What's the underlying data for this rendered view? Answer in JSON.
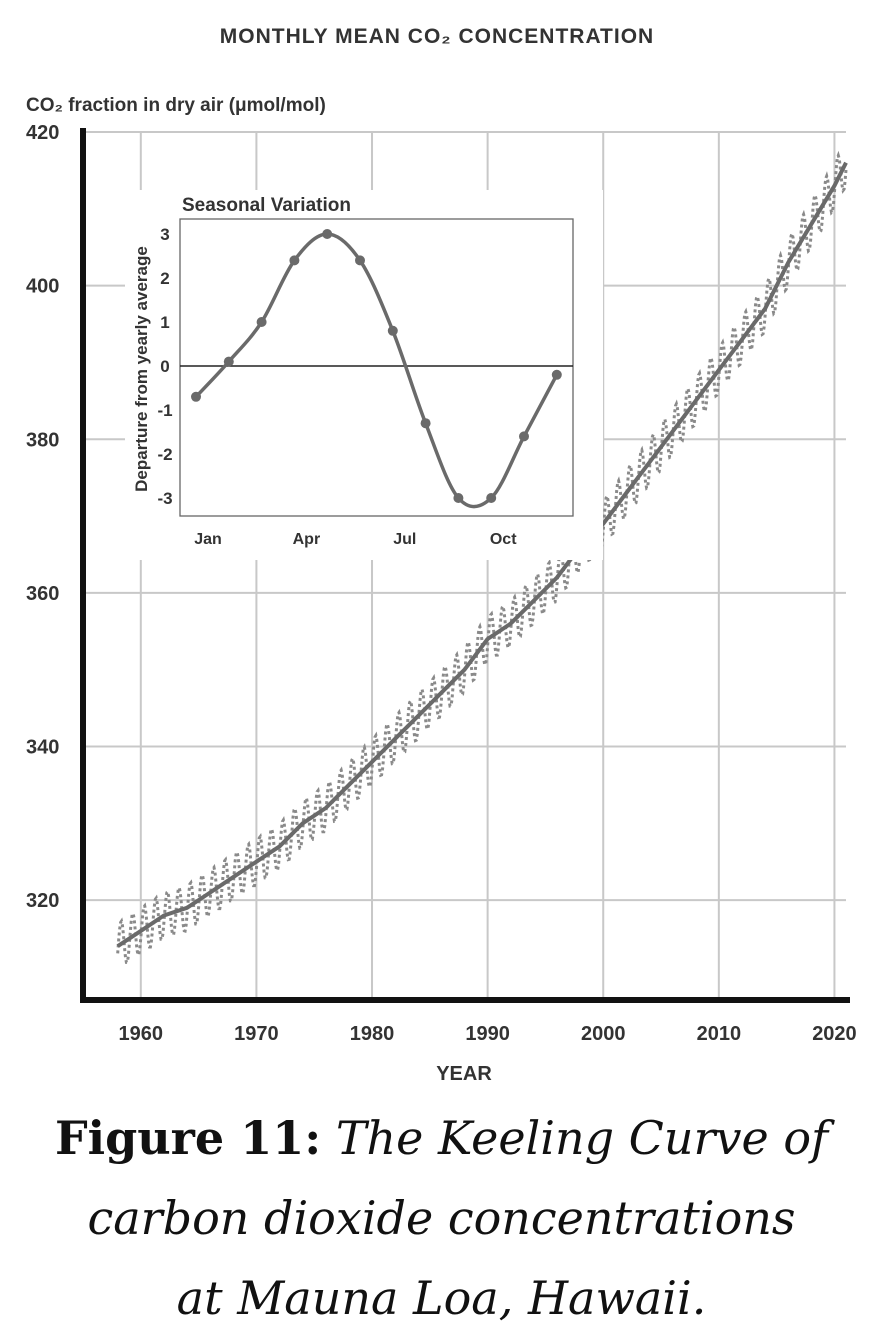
{
  "chart_data": [
    {
      "type": "line",
      "title": "MONTHLY MEAN CO₂ CONCENTRATION",
      "ylabel": "CO₂ fraction in dry air (μmol/mol)",
      "xlabel": "YEAR",
      "xlim": [
        1955,
        2021
      ],
      "ylim": [
        307,
        420
      ],
      "x_ticks": [
        1960,
        1970,
        1980,
        1990,
        2000,
        2010,
        2020
      ],
      "y_ticks": [
        320,
        340,
        360,
        380,
        400,
        420
      ],
      "grid": true,
      "series": [
        {
          "x": [
            1958,
            1960,
            1962,
            1964,
            1966,
            1968,
            1970,
            1972,
            1974,
            1976,
            1978,
            1980,
            1982,
            1984,
            1986,
            1988,
            1990,
            1992,
            1994,
            1996,
            1998,
            2000,
            2002,
            2004,
            2006,
            2008,
            2010,
            2012,
            2014,
            2016,
            2018,
            2020,
            2021
          ],
          "values": [
            314,
            316,
            318,
            319,
            321,
            323,
            325,
            327,
            330,
            332,
            335,
            338,
            341,
            344,
            347,
            350,
            354,
            356,
            359,
            362,
            366,
            369,
            373,
            377,
            381,
            385,
            389,
            393,
            397,
            403,
            408,
            413,
            416
          ],
          "seasonal_amplitude": 3
        }
      ]
    },
    {
      "type": "line",
      "title": "Seasonal Variation",
      "ylabel": "Departure from yearly average",
      "x_ticks": [
        "Jan",
        "Apr",
        "Jul",
        "Oct"
      ],
      "y_ticks": [
        3,
        2,
        1,
        0,
        -1,
        -2,
        -3
      ],
      "ylim": [
        -3.2,
        3.2
      ],
      "series": [
        {
          "x": [
            1,
            2,
            3,
            4,
            5,
            6,
            7,
            8,
            9,
            10,
            11,
            12
          ],
          "values": [
            -0.7,
            0.1,
            1.0,
            2.4,
            3.0,
            2.4,
            0.8,
            -1.3,
            -3.0,
            -3.0,
            -1.6,
            -0.2
          ]
        }
      ]
    }
  ],
  "caption": {
    "label": "Figure 11:",
    "line1": "The Keeling Curve of",
    "line2": "carbon dioxide concentrations",
    "line3": "at Mauna Loa, Hawaii."
  }
}
